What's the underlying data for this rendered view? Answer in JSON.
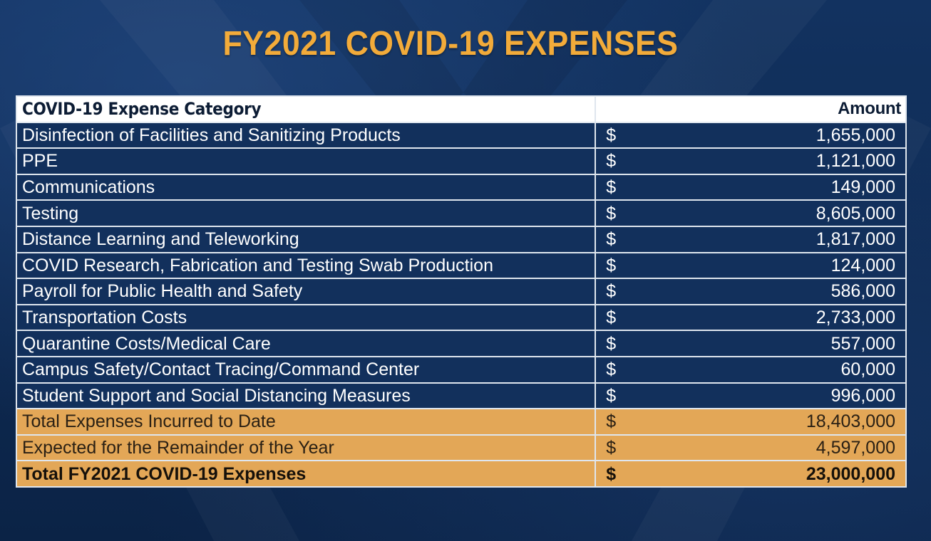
{
  "title": "FY2021 COVID-19 EXPENSES",
  "table": {
    "headers": {
      "category": "COVID-19 Expense Category",
      "amount": "Amount"
    },
    "currency_symbol": "$",
    "rows": [
      {
        "category": "Disinfection of Facilities and Sanitizing Products",
        "currency": "$",
        "amount": "1,655,000"
      },
      {
        "category": "PPE",
        "currency": "$",
        "amount": "1,121,000"
      },
      {
        "category": "Communications",
        "currency": "$",
        "amount": "149,000"
      },
      {
        "category": "Testing",
        "currency": "$",
        "amount": "8,605,000"
      },
      {
        "category": "Distance Learning and Teleworking",
        "currency": "$",
        "amount": "1,817,000"
      },
      {
        "category": "COVID Research, Fabrication and Testing Swab Production",
        "currency": "$",
        "amount": "124,000"
      },
      {
        "category": "Payroll for Public Health and Safety",
        "currency": "$",
        "amount": "586,000"
      },
      {
        "category": "Transportation Costs",
        "currency": "$",
        "amount": "2,733,000"
      },
      {
        "category": "Quarantine Costs/Medical Care",
        "currency": "$",
        "amount": "557,000"
      },
      {
        "category": "Campus Safety/Contact Tracing/Command Center",
        "currency": "$",
        "amount": "60,000"
      },
      {
        "category": "Student Support and Social Distancing Measures",
        "currency": "$",
        "amount": "996,000"
      }
    ],
    "totals": [
      {
        "category": "Total Expenses Incurred to Date",
        "currency": "$",
        "amount": "18,403,000"
      },
      {
        "category": "Expected for the Remainder of the Year",
        "currency": "$",
        "amount": "4,597,000"
      }
    ],
    "grand_total": {
      "category": "Total FY2021 COVID-19 Expenses",
      "currency": "$",
      "amount": "23,000,000"
    }
  },
  "colors": {
    "background": "#0f2a50",
    "title": "#f2ab3a",
    "row": "#12305c",
    "highlight": "#e3a757",
    "border": "#dfe6ee"
  }
}
